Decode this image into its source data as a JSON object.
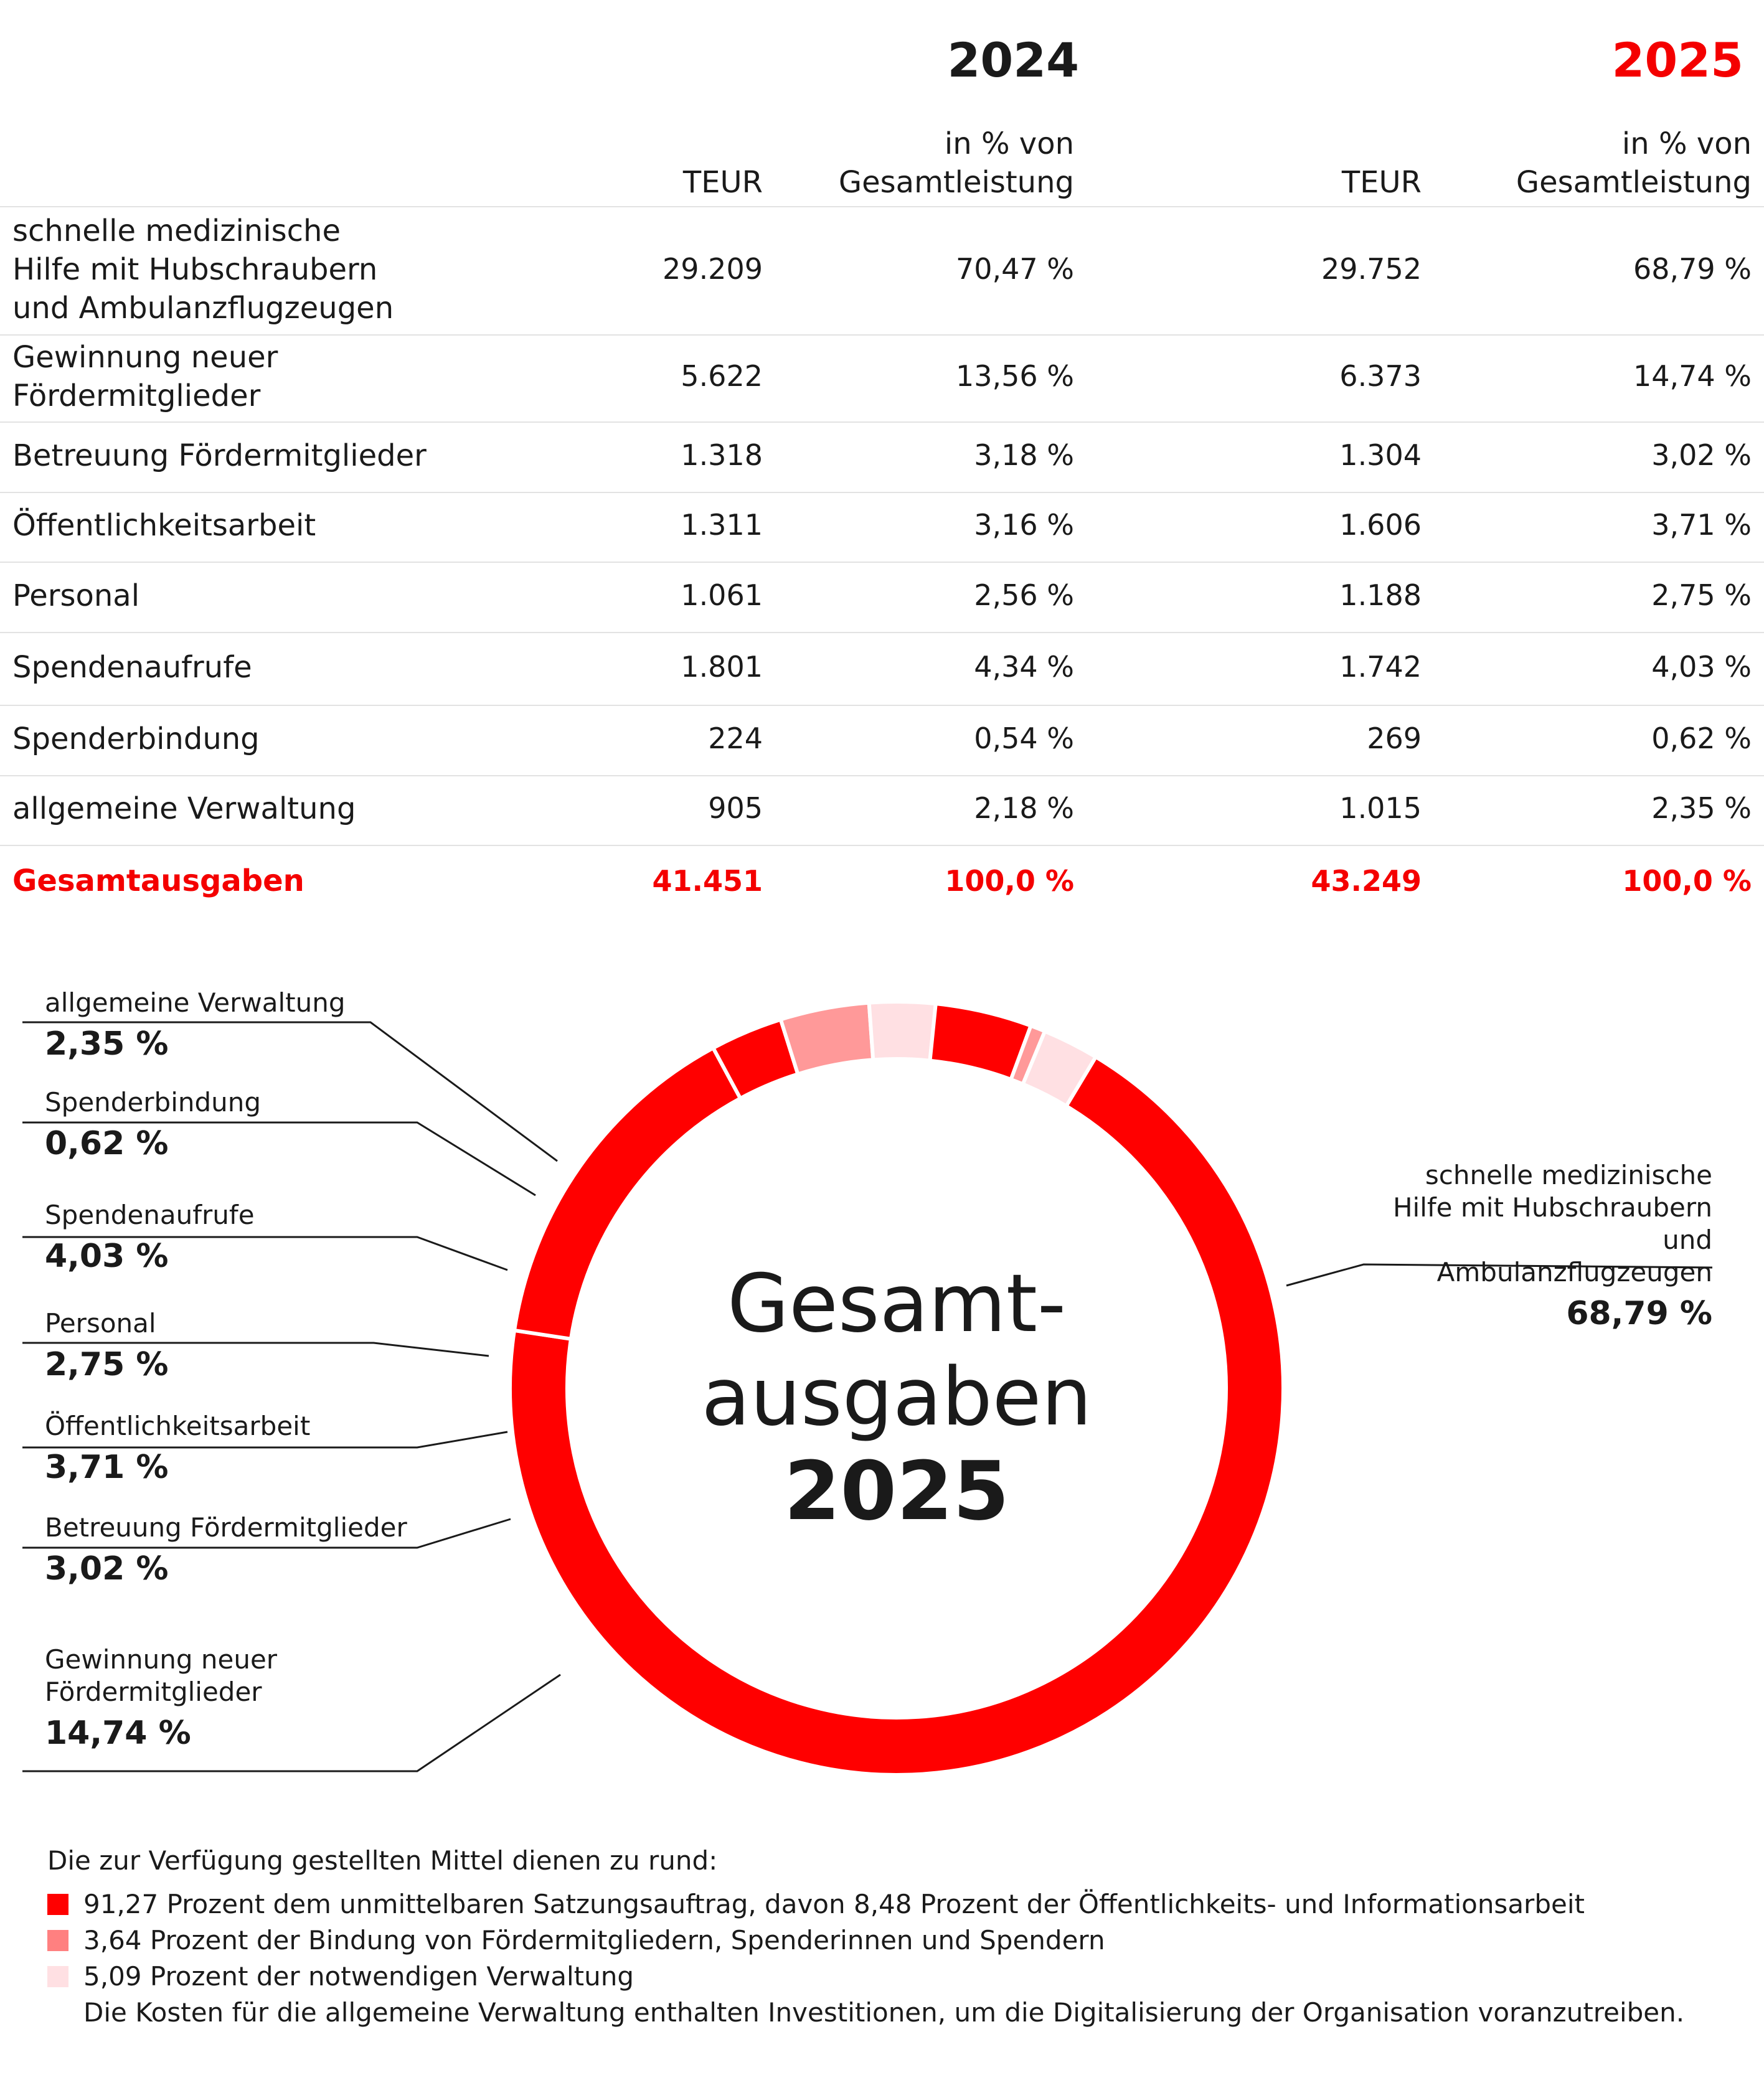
{
  "table": {
    "years": [
      "2024",
      "2025"
    ],
    "col_teur": "TEUR",
    "col_pct": "in % von Gesamtleistung",
    "rows": [
      {
        "label": "schnelle medizinische Hilfe mit Hubschraubern und Ambulanzflugzeugen",
        "teur_2024": "29.209",
        "pct_2024": "70,47 %",
        "teur_2025": "29.752",
        "pct_2025": "68,79 %"
      },
      {
        "label": "Gewinnung neuer Fördermitglieder",
        "teur_2024": "5.622",
        "pct_2024": "13,56 %",
        "teur_2025": "6.373",
        "pct_2025": "14,74 %"
      },
      {
        "label": "Betreuung Fördermitglieder",
        "teur_2024": "1.318",
        "pct_2024": "3,18 %",
        "teur_2025": "1.304",
        "pct_2025": "3,02 %"
      },
      {
        "label": "Öffentlichkeitsarbeit",
        "teur_2024": "1.311",
        "pct_2024": "3,16 %",
        "teur_2025": "1.606",
        "pct_2025": "3,71 %"
      },
      {
        "label": "Personal",
        "teur_2024": "1.061",
        "pct_2024": "2,56 %",
        "teur_2025": "1.188",
        "pct_2025": "2,75 %"
      },
      {
        "label": "Spendenaufrufe",
        "teur_2024": "1.801",
        "pct_2024": "4,34 %",
        "teur_2025": "1.742",
        "pct_2025": "4,03 %"
      },
      {
        "label": "Spenderbindung",
        "teur_2024": "224",
        "pct_2024": "0,54 %",
        "teur_2025": "269",
        "pct_2025": "0,62 %"
      },
      {
        "label": "allgemeine Verwaltung",
        "teur_2024": "905",
        "pct_2024": "2,18 %",
        "teur_2025": "1.015",
        "pct_2025": "2,35 %"
      }
    ],
    "total": {
      "label": "Gesamtausgaben",
      "teur_2024": "41.451",
      "pct_2024": "100,0 %",
      "teur_2025": "43.249",
      "pct_2025": "100,0 %"
    }
  },
  "chart_data": {
    "type": "pie",
    "center_title": "Gesamt- ausgaben",
    "center_year": "2025",
    "slices": [
      {
        "label": "schnelle medizinische Hilfe mit Hubschraubern und Ambulanzflugzeugen",
        "value": 68.79,
        "value_label": "68,79 %",
        "color": "#ff0000"
      },
      {
        "label": "Gewinnung neuer Fördermitglieder",
        "value": 14.74,
        "value_label": "14,74 %",
        "color": "#ff0000"
      },
      {
        "label": "Betreuung Fördermitglieder",
        "value": 3.02,
        "value_label": "3,02 %",
        "color": "#ff0000"
      },
      {
        "label": "Öffentlichkeitsarbeit",
        "value": 3.71,
        "value_label": "3,71 %",
        "color": "#ff9999"
      },
      {
        "label": "Personal",
        "value": 2.75,
        "value_label": "2,75 %",
        "color": "#ffe0e3"
      },
      {
        "label": "Spendenaufrufe",
        "value": 4.03,
        "value_label": "4,03 %",
        "color": "#ff0000"
      },
      {
        "label": "Spenderbindung",
        "value": 0.62,
        "value_label": "0,62 %",
        "color": "#ff9999"
      },
      {
        "label": "allgemeine Verwaltung",
        "value": 2.35,
        "value_label": "2,35 %",
        "color": "#ffe0e3"
      }
    ]
  },
  "notes": {
    "intro": "Die zur Verfügung gestellten Mittel dienen zu rund:",
    "items": [
      {
        "text": "91,27 Prozent dem unmittelbaren Satzungsauftrag, davon 8,48 Prozent der Öffentlichkeits- und Informationsarbeit",
        "color": "#ff0000"
      },
      {
        "text": "3,64 Prozent der Bindung von Fördermitgliedern, Spenderinnen und Spendern",
        "color": "#ff8080"
      },
      {
        "text": "5,09 Prozent der notwendigen Verwaltung",
        "color": "#ffe0e3"
      }
    ],
    "extra": "Die Kosten für die allgemeine Verwaltung enthalten Investitionen, um die Digitalisierung der Organisation voranzutreiben."
  },
  "colors": {
    "accent": "#f40000"
  }
}
